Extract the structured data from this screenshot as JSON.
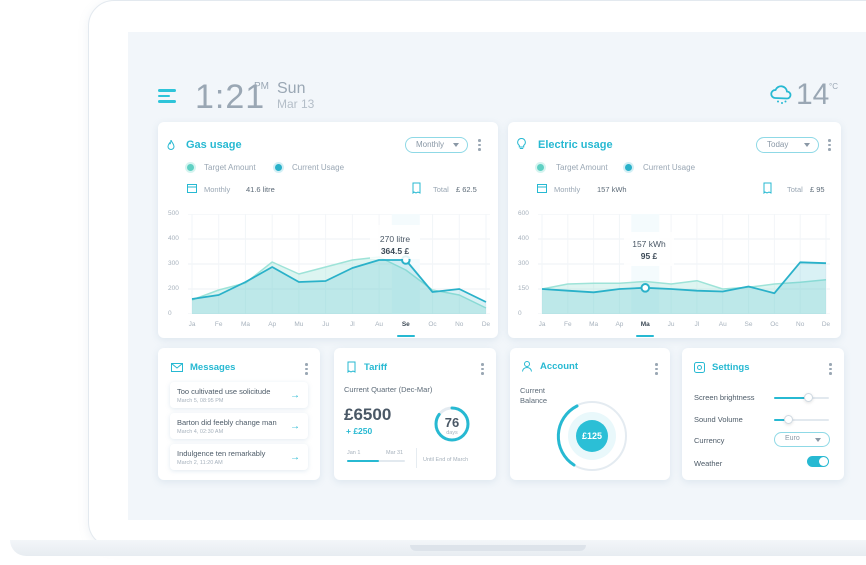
{
  "header": {
    "time": "1:21",
    "ampm": "PM",
    "day": "Sun",
    "date": "Mar 13",
    "temperature": "14",
    "temp_unit": "°C",
    "weather_icon": "cloud-snow-icon"
  },
  "gas": {
    "title": "Gas usage",
    "period": "Monthly",
    "legend_target": "Target Amount",
    "legend_current": "Current Usage",
    "monthly_label": "Monthly",
    "monthly_value": "41.6 litre",
    "total_label": "Total",
    "total_value": "£ 62.5",
    "tooltip_amount": "270 litre",
    "tooltip_cost": "364.5 £",
    "y_ticks": [
      "500",
      "400",
      "300",
      "200",
      "0"
    ],
    "x_ticks": [
      "Ja",
      "Fe",
      "Ma",
      "Ap",
      "Mu",
      "Ju",
      "Jl",
      "Au",
      "Se",
      "Oc",
      "No",
      "De"
    ],
    "active_index": 8
  },
  "electric": {
    "title": "Electric usage",
    "period": "Today",
    "legend_target": "Target Amount",
    "legend_current": "Current Usage",
    "monthly_label": "Monthly",
    "monthly_value": "157 kWh",
    "total_label": "Total",
    "total_value": "£ 95",
    "tooltip_amount": "157 kWh",
    "tooltip_cost": "95 £",
    "y_ticks": [
      "600",
      "400",
      "300",
      "150",
      "0"
    ],
    "x_ticks": [
      "Ja",
      "Fe",
      "Ma",
      "Ap",
      "Ma",
      "Ju",
      "Jl",
      "Au",
      "Se",
      "Oc",
      "No",
      "De"
    ],
    "active_index": 4
  },
  "chart_data": [
    {
      "type": "area",
      "title": "Gas usage",
      "categories": [
        "Ja",
        "Fe",
        "Ma",
        "Ap",
        "Mu",
        "Ju",
        "Jl",
        "Au",
        "Se",
        "Oc",
        "No",
        "De"
      ],
      "ylim": [
        0,
        500
      ],
      "series": [
        {
          "name": "Target Amount",
          "values": [
            70,
            120,
            155,
            260,
            200,
            235,
            270,
            285,
            220,
            120,
            95,
            30
          ]
        },
        {
          "name": "Current Usage",
          "values": [
            75,
            95,
            160,
            235,
            160,
            165,
            230,
            270,
            270,
            110,
            125,
            60
          ]
        }
      ]
    },
    {
      "type": "area",
      "title": "Electric usage",
      "categories": [
        "Ja",
        "Fe",
        "Ma",
        "Ap",
        "Ma",
        "Ju",
        "Jl",
        "Au",
        "Se",
        "Oc",
        "No",
        "De"
      ],
      "ylim": [
        0,
        600
      ],
      "series": [
        {
          "name": "Target Amount",
          "values": [
            150,
            180,
            185,
            185,
            195,
            180,
            200,
            150,
            160,
            180,
            190,
            205
          ]
        },
        {
          "name": "Current Usage",
          "values": [
            150,
            140,
            130,
            150,
            157,
            150,
            140,
            135,
            165,
            125,
            310,
            305
          ]
        }
      ]
    }
  ],
  "messages": {
    "title": "Messages",
    "items": [
      {
        "title": "Too cultivated use solicitude",
        "date": "March 5, 08:95 PM"
      },
      {
        "title": "Barton did feebly change man",
        "date": "March 4, 02:30 AM"
      },
      {
        "title": "Indulgence ten remarkably",
        "date": "March 2, 11:20 AM"
      }
    ]
  },
  "tariff": {
    "title": "Tariff",
    "period": "Current Quarter (Dec-Mar)",
    "amount": "£6500",
    "delta": "+ £250",
    "days": "76",
    "days_label": "days",
    "start": "Jan 1",
    "end": "Mar 31",
    "until": "Until End of March",
    "progress": 0.55,
    "ring_progress": 0.85
  },
  "account": {
    "title": "Account",
    "balance_label_1": "Current",
    "balance_label_2": "Balance",
    "balance": "£125"
  },
  "settings": {
    "title": "Settings",
    "brightness_label": "Screen brightness",
    "brightness": 0.62,
    "volume_label": "Sound Volume",
    "volume": 0.25,
    "currency_label": "Currency",
    "currency_value": "Euro",
    "weather_label": "Weather",
    "weather_on": true
  },
  "colors": {
    "accent": "#27b9d2",
    "target_line": "#9ee3d8",
    "current_line": "#2ab1c9"
  }
}
